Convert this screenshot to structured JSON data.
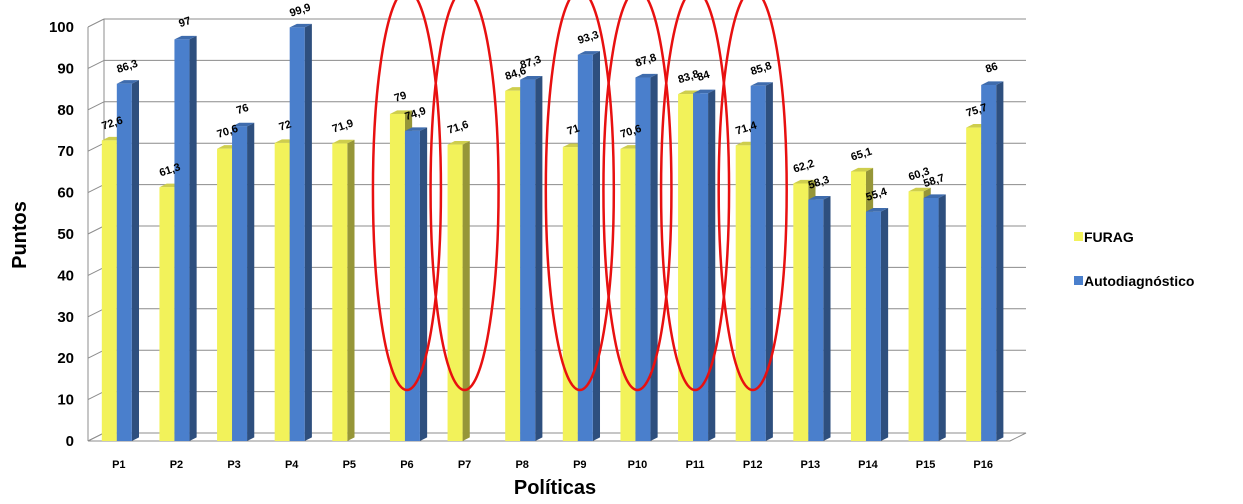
{
  "chart_data": {
    "type": "bar",
    "title": "",
    "xlabel": "Políticas",
    "ylabel": "Puntos",
    "ylim": [
      0,
      100
    ],
    "yticks": [
      "0",
      "10",
      "20",
      "30",
      "40",
      "50",
      "60",
      "70",
      "80",
      "90",
      "100"
    ],
    "categories": [
      "P1",
      "P2",
      "P3",
      "P4",
      "P5",
      "P6",
      "P7",
      "P8",
      "P9",
      "P10",
      "P11",
      "P12",
      "P13",
      "P14",
      "P15",
      "P16"
    ],
    "series": [
      {
        "name": "FURAG",
        "color": "#f2f25a",
        "values": [
          72.6,
          61.3,
          70.6,
          72,
          71.9,
          79,
          71.6,
          84.6,
          71,
          70.6,
          83.8,
          71.4,
          62.2,
          65.1,
          60.3,
          75.7
        ],
        "labels": [
          "72,6",
          "61,3",
          "70,6",
          "72",
          "71,9",
          "79",
          "71,6",
          "84,6",
          "71",
          "70,6",
          "83,8",
          "71,4",
          "62,2",
          "65,1",
          "60,3",
          "75,7"
        ]
      },
      {
        "name": "Autodiagnóstico",
        "color": "#4a7fcc",
        "values": [
          86.3,
          97,
          76,
          99.9,
          null,
          74.9,
          null,
          87.3,
          93.3,
          87.8,
          84,
          85.8,
          58.3,
          55.4,
          58.7,
          86
        ],
        "labels": [
          "86,3",
          "97",
          "76",
          "99,9",
          "",
          "74,9",
          "",
          "87,3",
          "93,3",
          "87,8",
          "84",
          "85,8",
          "58,3",
          "55,4",
          "58,7",
          "86"
        ]
      }
    ],
    "highlighted_categories": [
      "P6",
      "P7",
      "P9",
      "P10",
      "P11",
      "P12"
    ],
    "highlight_color": "#e81010",
    "grid": true,
    "legend_position": "right"
  }
}
